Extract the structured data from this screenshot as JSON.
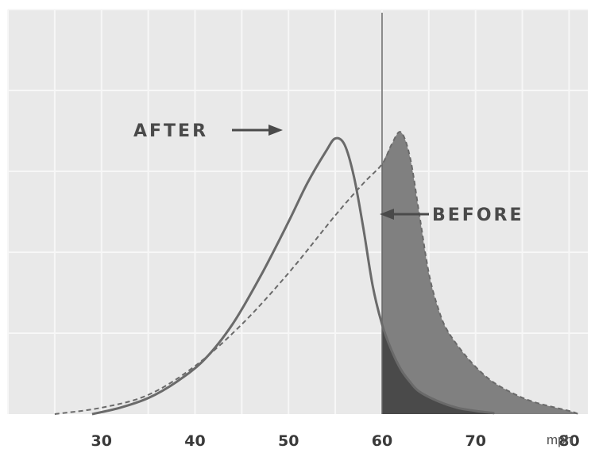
{
  "chart_data": {
    "type": "line",
    "title": "",
    "xlabel": "mph",
    "ylabel": "",
    "xlim": [
      20,
      82
    ],
    "ylim": [
      0,
      100
    ],
    "x_ticks": [
      30,
      40,
      50,
      60,
      70,
      80
    ],
    "x_unit": "mph",
    "grid": true,
    "speed_limit_marker": 60,
    "series": [
      {
        "name": "AFTER",
        "style": "solid",
        "points": [
          [
            29,
            0
          ],
          [
            32,
            2
          ],
          [
            35,
            5
          ],
          [
            38,
            10
          ],
          [
            41,
            17
          ],
          [
            44,
            28
          ],
          [
            47,
            43
          ],
          [
            50,
            60
          ],
          [
            52,
            72
          ],
          [
            54,
            82
          ],
          [
            55,
            86
          ],
          [
            56,
            84
          ],
          [
            57,
            74
          ],
          [
            58,
            58
          ],
          [
            59,
            40
          ],
          [
            60,
            28
          ],
          [
            61,
            20
          ],
          [
            62,
            14
          ],
          [
            63,
            10
          ],
          [
            64,
            7
          ],
          [
            66,
            4
          ],
          [
            68,
            2
          ],
          [
            70,
            1
          ],
          [
            72,
            0.3
          ]
        ]
      },
      {
        "name": "BEFORE",
        "style": "dashed",
        "points": [
          [
            25,
            0
          ],
          [
            30,
            2
          ],
          [
            35,
            6
          ],
          [
            40,
            15
          ],
          [
            45,
            28
          ],
          [
            50,
            44
          ],
          [
            55,
            62
          ],
          [
            58,
            72
          ],
          [
            60,
            78
          ],
          [
            61,
            84
          ],
          [
            62,
            88
          ],
          [
            63,
            80
          ],
          [
            64,
            62
          ],
          [
            65,
            44
          ],
          [
            66,
            33
          ],
          [
            67,
            26
          ],
          [
            69,
            18
          ],
          [
            71,
            12
          ],
          [
            73,
            8
          ],
          [
            76,
            4
          ],
          [
            80,
            1
          ],
          [
            81,
            0
          ]
        ]
      }
    ],
    "annotations": [
      {
        "text": "AFTER",
        "points_to": "AFTER"
      },
      {
        "text": "BEFORE",
        "points_to": "BEFORE"
      }
    ],
    "colors": {
      "background": "#e9e9e9",
      "grid": "#f7f7f7",
      "curve": "#6a6a6a",
      "before_fill": "#808080",
      "after_fill": "#4a4a4a",
      "marker": "#666666"
    }
  }
}
